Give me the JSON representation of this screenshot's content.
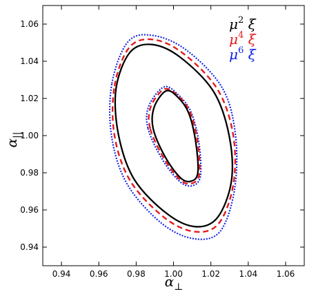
{
  "chart_data": {
    "type": "contour",
    "title": "",
    "xlabel": "α",
    "xlabel_sub": "⊥",
    "ylabel": "α",
    "ylabel_sub": "||",
    "xlim": [
      0.93,
      1.07
    ],
    "ylim": [
      0.93,
      1.07
    ],
    "xticks": [
      0.94,
      0.96,
      0.98,
      1.0,
      1.02,
      1.04,
      1.06
    ],
    "xtick_labels": [
      "0.94",
      "0.96",
      "0.98",
      "1.00",
      "1.02",
      "1.04",
      "1.06"
    ],
    "yticks": [
      0.94,
      0.96,
      0.98,
      1.0,
      1.02,
      1.04,
      1.06
    ],
    "ytick_labels": [
      "0.94",
      "0.96",
      "0.98",
      "1.00",
      "1.02",
      "1.04",
      "1.06"
    ],
    "legend_placement": "top-right",
    "series": [
      {
        "name": "μ² ξ",
        "legend_base": "μ",
        "legend_exp": "2",
        "legend_tail": " ξ",
        "color": "#000000",
        "style": "solid",
        "contours": [
          {
            "level": "inner",
            "center": [
              1.0005,
              1.0
            ],
            "points": [
              [
                0.9896,
                1.0152
              ],
              [
                0.9959,
                1.024
              ],
              [
                1.0021,
                1.0209
              ],
              [
                1.0081,
                1.0122
              ],
              [
                1.0119,
                0.9965
              ],
              [
                1.013,
                0.98
              ],
              [
                1.0092,
                0.9754
              ],
              [
                1.0036,
                0.9774
              ],
              [
                0.9955,
                0.9886
              ],
              [
                0.9891,
                1.0038
              ],
              [
                0.9896,
                1.0152
              ]
            ]
          },
          {
            "level": "outer",
            "center": [
              1.0002,
              1.0
            ],
            "points": [
              [
                0.9692,
                1.0251
              ],
              [
                0.9766,
                1.0447
              ],
              [
                0.9886,
                1.049
              ],
              [
                1.0038,
                1.042
              ],
              [
                1.0215,
                1.0236
              ],
              [
                1.0298,
                0.9999
              ],
              [
                1.031,
                0.9756
              ],
              [
                1.0236,
                0.956
              ],
              [
                1.0118,
                0.951
              ],
              [
                0.9965,
                0.958
              ],
              [
                0.979,
                0.9764
              ],
              [
                0.9706,
                1.0001
              ],
              [
                0.9692,
                1.0251
              ]
            ]
          }
        ]
      },
      {
        "name": "μ⁴ ξ",
        "legend_base": "μ",
        "legend_exp": "4",
        "legend_tail": " ξ",
        "color": "#e31a1c",
        "style": "dashed",
        "contours": [
          {
            "level": "inner",
            "center": [
              1.0005,
              1.0
            ],
            "points": [
              [
                0.9878,
                1.0155
              ],
              [
                0.9951,
                1.025
              ],
              [
                1.0025,
                1.0213
              ],
              [
                1.0089,
                1.0124
              ],
              [
                1.0129,
                0.9965
              ],
              [
                1.0138,
                0.9792
              ],
              [
                1.0094,
                0.9742
              ],
              [
                1.0031,
                0.9766
              ],
              [
                0.9946,
                0.9882
              ],
              [
                0.9875,
                1.0038
              ],
              [
                0.9878,
                1.0155
              ]
            ]
          },
          {
            "level": "outer",
            "center": [
              1.0002,
              1.0
            ],
            "points": [
              [
                0.9684,
                1.0266
              ],
              [
                0.9763,
                1.0474
              ],
              [
                0.989,
                1.0517
              ],
              [
                1.0052,
                1.0442
              ],
              [
                1.0236,
                1.0248
              ],
              [
                1.032,
                1.0
              ],
              [
                1.032,
                0.9736
              ],
              [
                1.0242,
                0.9527
              ],
              [
                1.0114,
                0.9483
              ],
              [
                0.9952,
                0.9558
              ],
              [
                0.977,
                0.9754
              ],
              [
                0.9684,
                1.0
              ],
              [
                0.9684,
                1.0266
              ]
            ]
          }
        ]
      },
      {
        "name": "μ⁶ ξ",
        "legend_base": "μ",
        "legend_exp": "6",
        "legend_tail": " ξ",
        "color": "#0a1fe6",
        "style": "dotted",
        "contours": [
          {
            "level": "inner",
            "center": [
              1.0005,
              1.0
            ],
            "points": [
              [
                0.9868,
                1.016
              ],
              [
                0.9949,
                1.0262
              ],
              [
                1.0025,
                1.022
              ],
              [
                1.0094,
                1.0126
              ],
              [
                1.0136,
                0.9962
              ],
              [
                1.0144,
                0.9782
              ],
              [
                1.0098,
                0.973
              ],
              [
                1.003,
                0.9756
              ],
              [
                0.9937,
                0.9877
              ],
              [
                0.9863,
                1.004
              ],
              [
                0.9868,
                1.016
              ]
            ]
          },
          {
            "level": "outer",
            "center": [
              1.0002,
              1.0
            ],
            "points": [
              [
                0.967,
                1.028
              ],
              [
                0.9757,
                1.0506
              ],
              [
                0.9895,
                1.0538
              ],
              [
                1.0073,
                1.0457
              ],
              [
                1.0262,
                1.0255
              ],
              [
                1.0332,
                1.0
              ],
              [
                1.0327,
                0.9712
              ],
              [
                1.025,
                0.9485
              ],
              [
                1.011,
                0.9445
              ],
              [
                0.9934,
                0.953
              ],
              [
                0.975,
                0.9742
              ],
              [
                0.9668,
                1.0
              ],
              [
                0.967,
                1.028
              ]
            ]
          }
        ]
      }
    ]
  }
}
